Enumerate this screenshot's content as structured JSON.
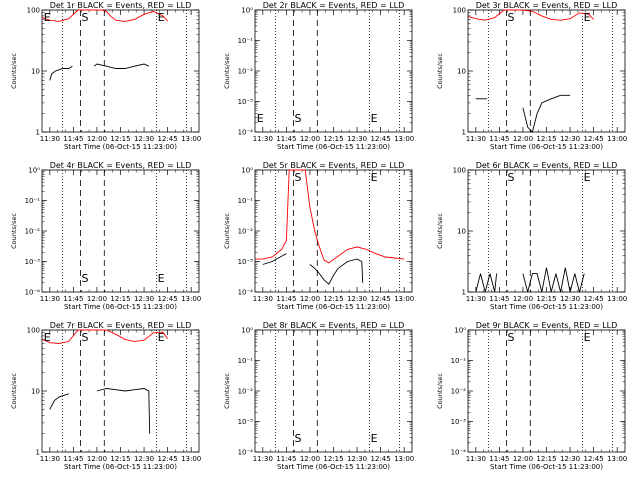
{
  "chart_data": [
    {
      "type": "line",
      "title": "Det 1r BLACK = Events, RED = LLD",
      "xlabel": "Start Time (06-Oct-15 11:23:00)",
      "ylabel": "Counts/sec",
      "yscale": "log",
      "yticks": [
        "1",
        "10",
        "100"
      ],
      "ylim": [
        1,
        100
      ],
      "xticks": [
        "11:30",
        "11:45",
        "12:00",
        "12:15",
        "12:30",
        "12:45",
        "13:00"
      ],
      "xlim": [
        11.417,
        13.083
      ],
      "markers": [
        "E",
        "S",
        "E"
      ],
      "series": [
        {
          "color": "#ff0000",
          "x": [
            11.42,
            11.5,
            11.6,
            11.7,
            11.8,
            11.85,
            11.9,
            11.95,
            12.0,
            12.05,
            12.1,
            12.15,
            12.2,
            12.3,
            12.4,
            12.5,
            12.6,
            12.7,
            12.75
          ],
          "y": [
            75,
            68,
            65,
            72,
            100,
            100,
            100,
            100,
            100,
            100,
            95,
            78,
            68,
            65,
            70,
            85,
            95,
            80,
            66
          ]
        },
        {
          "color": "#000000",
          "x": [
            11.5,
            11.52,
            11.56,
            11.6,
            11.64,
            11.7,
            11.74
          ],
          "y": [
            7,
            9,
            10,
            10.5,
            11,
            11,
            12
          ]
        },
        {
          "color": "#000000",
          "x": [
            11.97,
            12.0,
            12.1,
            12.2,
            12.3,
            12.4,
            12.5,
            12.55
          ],
          "y": [
            12,
            13,
            12,
            11,
            11,
            12,
            13,
            12
          ]
        }
      ]
    },
    {
      "type": "line",
      "title": "Det 2r BLACK = Events, RED = LLD",
      "xlabel": "Start Time (06-Oct-15 11:23:00)",
      "ylabel": "Counts/sec",
      "yscale": "log",
      "yticks": [
        "10⁻⁴",
        "10⁻³",
        "10⁻²",
        "10⁻¹",
        "10⁰"
      ],
      "ylim": [
        0.0001,
        1
      ],
      "xticks": [
        "11:30",
        "11:45",
        "12:00",
        "12:15",
        "12:30",
        "12:45",
        "13:00"
      ],
      "xlim": [
        11.417,
        13.083
      ],
      "markers": [
        "E",
        "S",
        "E"
      ],
      "series": []
    },
    {
      "type": "line",
      "title": "Det 3r BLACK = Events, RED = LLD",
      "xlabel": "Start Time (06-Oct-15 11:23:00)",
      "ylabel": "Counts/sec",
      "yscale": "log",
      "yticks": [
        "1",
        "10",
        "100"
      ],
      "ylim": [
        1,
        100
      ],
      "xticks": [
        "11:30",
        "11:45",
        "12:00",
        "12:15",
        "12:30",
        "12:45",
        "13:00"
      ],
      "xlim": [
        11.417,
        13.083
      ],
      "markers": [
        "S",
        "E"
      ],
      "series": [
        {
          "color": "#ff0000",
          "x": [
            11.42,
            11.5,
            11.6,
            11.7,
            11.8,
            11.9,
            12.0,
            12.1,
            12.2,
            12.3,
            12.4,
            12.5,
            12.6,
            12.7,
            12.75
          ],
          "y": [
            78,
            72,
            68,
            75,
            100,
            100,
            100,
            95,
            80,
            70,
            68,
            72,
            90,
            85,
            70
          ]
        },
        {
          "color": "#000000",
          "x": [
            11.5,
            11.6,
            11.62
          ],
          "y": [
            3.5,
            3.5,
            3.5
          ]
        },
        {
          "color": "#000000",
          "x": [
            12.0,
            12.05,
            12.1,
            12.15,
            12.2,
            12.3,
            12.4,
            12.5
          ],
          "y": [
            2.5,
            1.2,
            1,
            2,
            3,
            3.5,
            4,
            4
          ]
        }
      ]
    },
    {
      "type": "line",
      "title": "Det 4r BLACK = Events, RED = LLD",
      "xlabel": "Start Time (06-Oct-15 11:23:00)",
      "ylabel": "Counts/sec",
      "yscale": "log",
      "yticks": [
        "10⁻⁴",
        "10⁻³",
        "10⁻²",
        "10⁻¹",
        "10⁰"
      ],
      "ylim": [
        0.0001,
        1
      ],
      "xticks": [
        "11:30",
        "11:45",
        "12:00",
        "12:15",
        "12:30",
        "12:45",
        "13:00"
      ],
      "xlim": [
        11.417,
        13.083
      ],
      "markers": [
        "S",
        "E"
      ],
      "series": []
    },
    {
      "type": "line",
      "title": "Det 5r BLACK = Events, RED = LLD",
      "xlabel": "Start Time (06-Oct-15 11:23:00)",
      "ylabel": "Counts/sec",
      "yscale": "log",
      "yticks": [
        "10⁻⁴",
        "10⁻³",
        "10⁻²",
        "10⁻¹",
        "10⁰"
      ],
      "ylim": [
        0.0001,
        1
      ],
      "xticks": [
        "11:30",
        "11:45",
        "12:00",
        "12:15",
        "12:30",
        "12:45",
        "13:00"
      ],
      "xlim": [
        11.417,
        13.083
      ],
      "markers": [
        "S",
        "E"
      ],
      "series": [
        {
          "color": "#ff0000",
          "x": [
            11.42,
            11.5,
            11.6,
            11.7,
            11.75,
            11.78,
            11.85,
            11.9,
            11.95,
            12.0,
            12.05,
            12.1,
            12.15,
            12.2,
            12.3,
            12.4,
            12.5,
            12.6,
            12.7,
            12.8,
            12.9,
            13.0
          ],
          "y": [
            0.0012,
            0.0012,
            0.0014,
            0.0025,
            0.005,
            1,
            1,
            1,
            1,
            0.06,
            0.01,
            0.003,
            0.0011,
            0.0009,
            0.0015,
            0.0025,
            0.003,
            0.0025,
            0.0018,
            0.0014,
            0.0013,
            0.0012
          ]
        },
        {
          "color": "#000000",
          "x": [
            11.5,
            11.6,
            11.7,
            11.75
          ],
          "y": [
            0.0008,
            0.001,
            0.0015,
            0.0018
          ]
        },
        {
          "color": "#000000",
          "x": [
            12.0,
            12.05,
            12.1,
            12.15,
            12.2,
            12.25,
            12.3,
            12.4,
            12.5,
            12.55,
            12.56
          ],
          "y": [
            0.0008,
            0.0006,
            0.0004,
            0.00025,
            0.00018,
            0.00035,
            0.0006,
            0.001,
            0.0012,
            0.001,
            0.0002
          ]
        }
      ]
    },
    {
      "type": "line",
      "title": "Det 6r BLACK = Events, RED = LLD",
      "xlabel": "Start Time (06-Oct-15 11:23:00)",
      "ylabel": "Counts/sec",
      "yscale": "log",
      "yticks": [
        "1",
        "10",
        "100"
      ],
      "ylim": [
        1,
        100
      ],
      "xticks": [
        "11:30",
        "11:45",
        "12:00",
        "12:15",
        "12:30",
        "12:45",
        "13:00"
      ],
      "xlim": [
        11.417,
        13.083
      ],
      "markers": [
        "S",
        "E"
      ],
      "series": [
        {
          "color": "#000000",
          "x": [
            11.5,
            11.55,
            11.6,
            11.65,
            11.7,
            11.72
          ],
          "y": [
            1,
            2,
            1,
            2,
            1,
            2
          ]
        },
        {
          "color": "#000000",
          "x": [
            12.0,
            12.05,
            12.1,
            12.15,
            12.2,
            12.25,
            12.3,
            12.35,
            12.4,
            12.45,
            12.5,
            12.55,
            12.6,
            12.65
          ],
          "y": [
            2,
            1,
            2,
            2,
            1,
            2.5,
            1,
            2,
            1,
            2.5,
            1,
            2,
            1,
            2
          ]
        }
      ]
    },
    {
      "type": "line",
      "title": "Det 7r BLACK = Events, RED = LLD",
      "xlabel": "Start Time (06-Oct-15 11:23:00)",
      "ylabel": "Counts/sec",
      "yscale": "log",
      "yticks": [
        "1",
        "10",
        "100"
      ],
      "ylim": [
        1,
        100
      ],
      "xticks": [
        "11:30",
        "11:45",
        "12:00",
        "12:15",
        "12:30",
        "12:45",
        "13:00"
      ],
      "xlim": [
        11.417,
        13.083
      ],
      "markers": [
        "E",
        "S",
        "E"
      ],
      "series": [
        {
          "color": "#ff0000",
          "x": [
            11.42,
            11.5,
            11.6,
            11.7,
            11.8,
            11.9,
            12.0,
            12.1,
            12.2,
            12.3,
            12.4,
            12.5,
            12.6,
            12.7,
            12.75
          ],
          "y": [
            70,
            62,
            60,
            65,
            100,
            100,
            100,
            100,
            85,
            70,
            65,
            68,
            90,
            92,
            72
          ]
        },
        {
          "color": "#000000",
          "x": [
            11.5,
            11.55,
            11.6,
            11.65,
            11.7
          ],
          "y": [
            5,
            7,
            8,
            8.5,
            9
          ]
        },
        {
          "color": "#000000",
          "x": [
            12.0,
            12.1,
            12.2,
            12.3,
            12.4,
            12.5,
            12.55,
            12.56
          ],
          "y": [
            10,
            11,
            10.5,
            10,
            10.5,
            11,
            10,
            2
          ]
        }
      ]
    },
    {
      "type": "line",
      "title": "Det 8r BLACK = Events, RED = LLD",
      "xlabel": "Start Time (06-Oct-15 11:23:00)",
      "ylabel": "Counts/sec",
      "yscale": "log",
      "yticks": [
        "10⁻⁴",
        "10⁻³",
        "10⁻²",
        "10⁻¹",
        "10⁰"
      ],
      "ylim": [
        0.0001,
        1
      ],
      "xticks": [
        "11:30",
        "11:45",
        "12:00",
        "12:15",
        "12:30",
        "12:45",
        "13:00"
      ],
      "xlim": [
        11.417,
        13.083
      ],
      "markers": [
        "S",
        "E"
      ],
      "series": []
    },
    {
      "type": "line",
      "title": "Det 9r BLACK = Events, RED = LLD",
      "xlabel": "Start Time (06-Oct-15 11:23:00)",
      "ylabel": "Counts/sec",
      "yscale": "log",
      "yticks": [
        "10⁻⁴",
        "10⁻³",
        "10⁻²",
        "10⁻¹",
        "10⁰"
      ],
      "ylim": [
        0.0001,
        1
      ],
      "xticks": [
        "11:30",
        "11:45",
        "12:00",
        "12:15",
        "12:30",
        "12:45",
        "13:00"
      ],
      "xlim": [
        11.417,
        13.083
      ],
      "markers": [
        "S",
        "E"
      ],
      "series": []
    }
  ],
  "time_markers": {
    "dotted": [
      11.633,
      12.633,
      12.95
    ],
    "dashed": [
      11.825,
      12.078
    ],
    "colors": {
      "events": "#000000",
      "lld": "#ff0000"
    }
  }
}
